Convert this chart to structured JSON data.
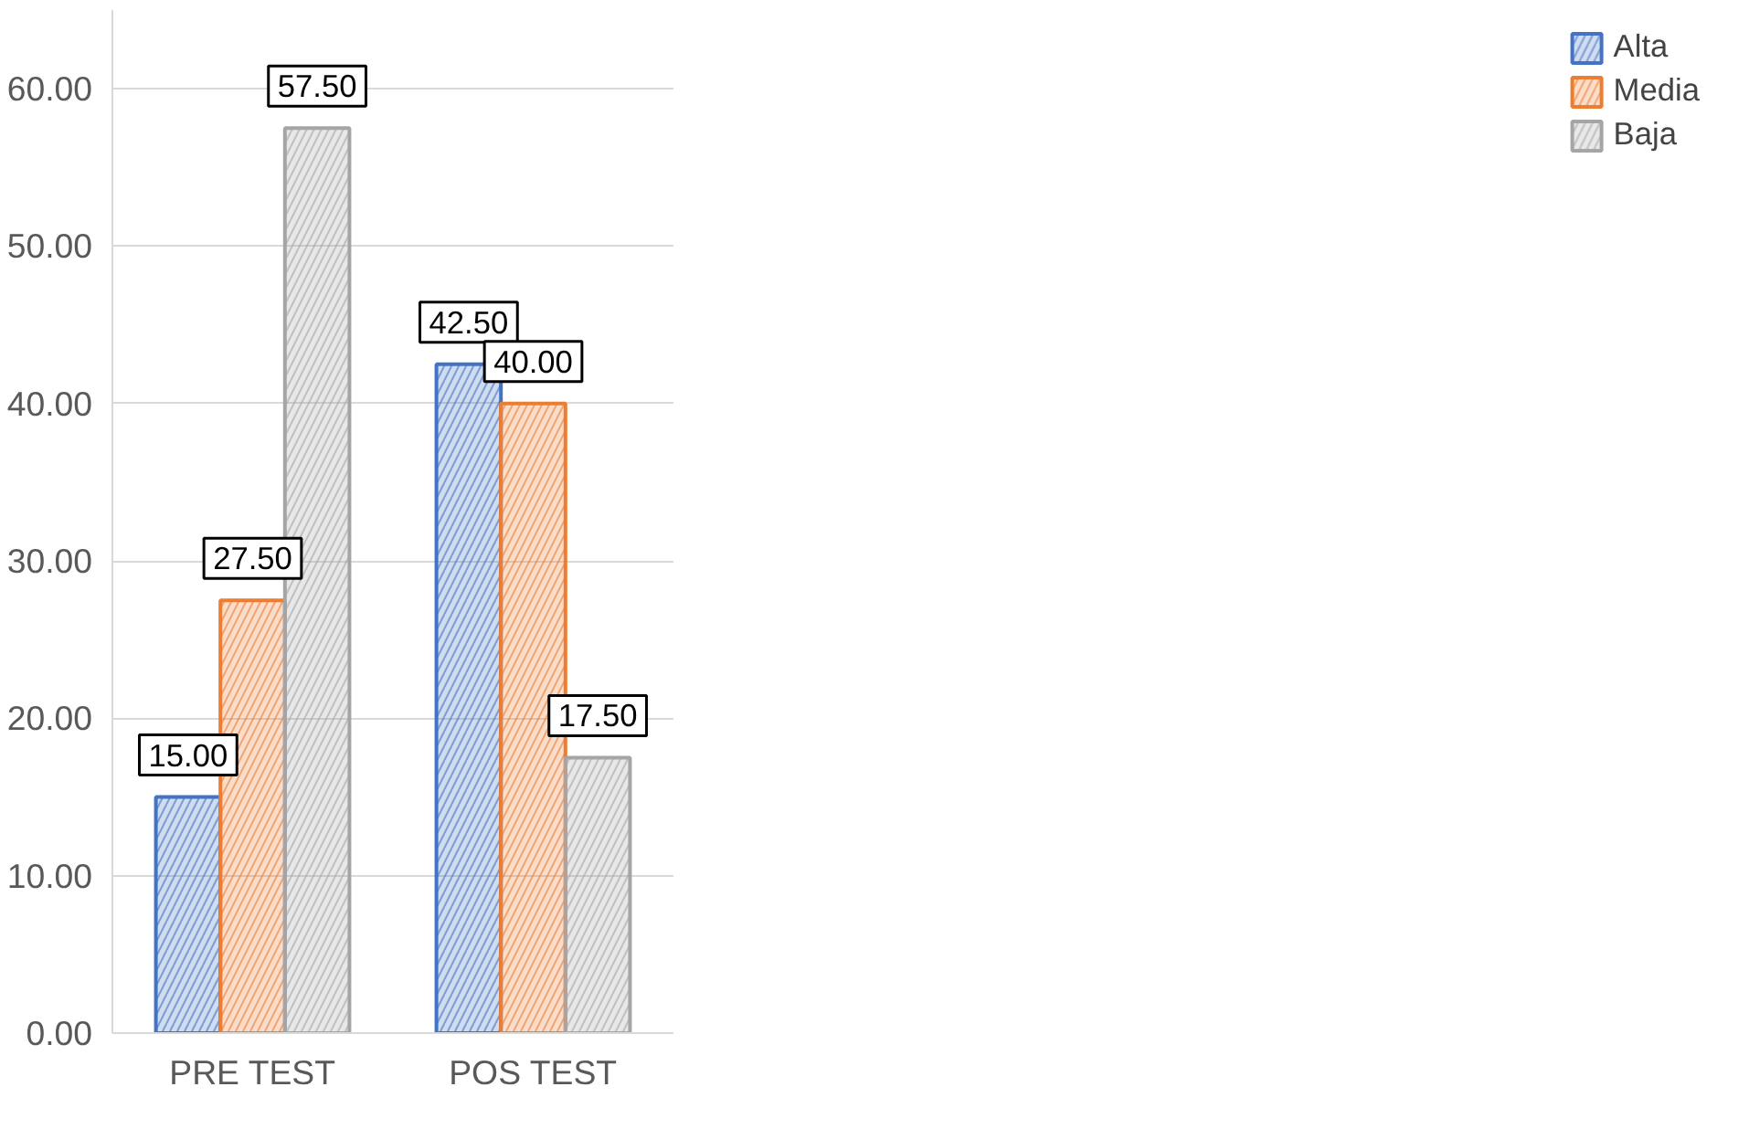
{
  "chart_data": {
    "type": "bar",
    "categories": [
      "PRE TEST",
      "POS TEST"
    ],
    "series": [
      {
        "name": "Alta",
        "color": "#4472c4",
        "values": [
          15.0,
          42.5
        ],
        "value_labels": [
          "15.00",
          "42.50"
        ]
      },
      {
        "name": "Media",
        "color": "#ed7d31",
        "values": [
          27.5,
          40.0
        ],
        "value_labels": [
          "27.50",
          "40.00"
        ]
      },
      {
        "name": "Baja",
        "color": "#a5a5a5",
        "values": [
          57.5,
          17.5
        ],
        "value_labels": [
          "57.50",
          "17.50"
        ]
      }
    ],
    "ylim": [
      0,
      65
    ],
    "yticks": [
      {
        "value": 0,
        "label": "0.00"
      },
      {
        "value": 10,
        "label": "10.00"
      },
      {
        "value": 20,
        "label": "20.00"
      },
      {
        "value": 30,
        "label": "30.00"
      },
      {
        "value": 40,
        "label": "40.00"
      },
      {
        "value": 50,
        "label": "50.00"
      },
      {
        "value": 60,
        "label": "60.00"
      }
    ],
    "grid": "y",
    "legend": "right"
  }
}
